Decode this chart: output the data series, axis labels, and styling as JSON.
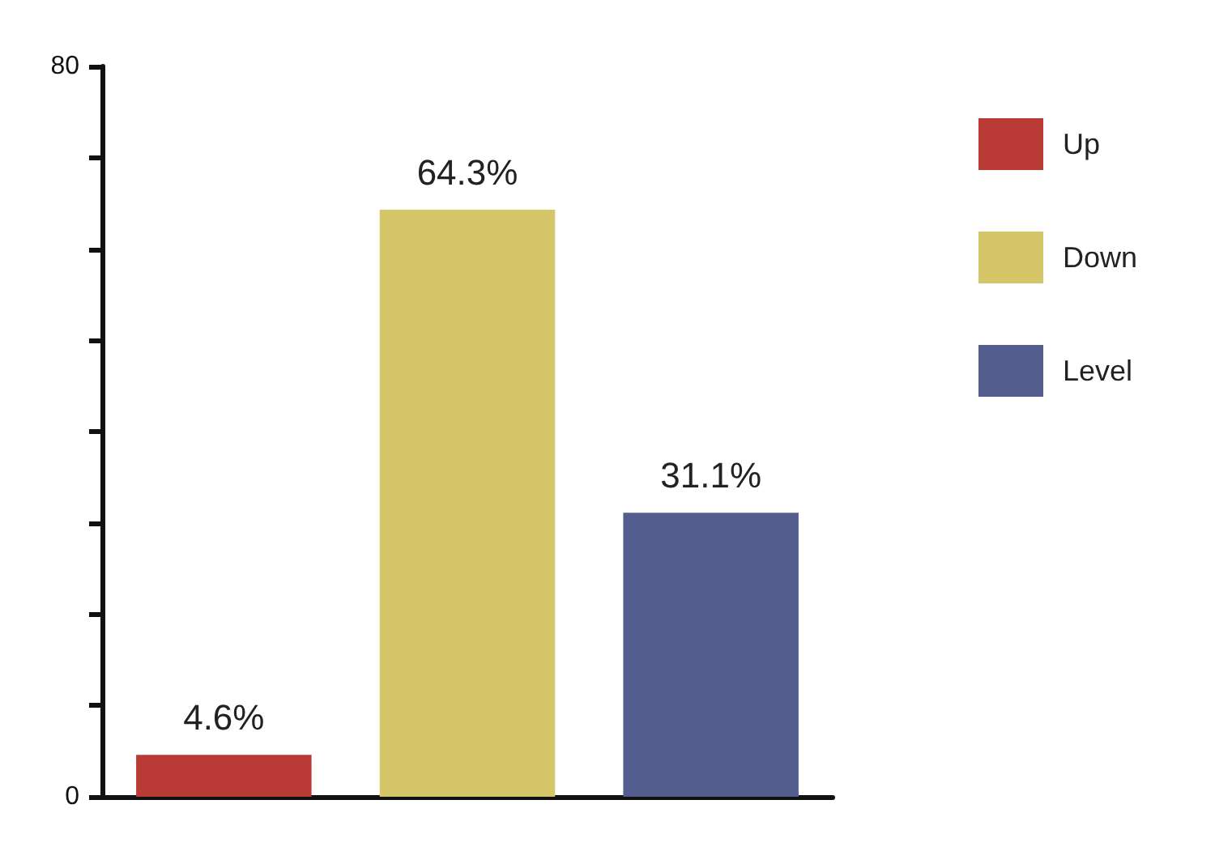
{
  "chart_data": {
    "type": "bar",
    "categories": [
      null,
      null,
      null
    ],
    "series": [
      {
        "name": "Up",
        "color": "#b93a37",
        "values": [
          4.6,
          null,
          null
        ],
        "value_labels": [
          "4.6%",
          null,
          null
        ]
      },
      {
        "name": "Down",
        "color": "#d6c66a",
        "values": [
          null,
          64.3,
          null
        ],
        "value_labels": [
          null,
          "64.3%",
          null
        ]
      },
      {
        "name": "Level",
        "color": "#535e8f",
        "values": [
          null,
          null,
          31.1
        ],
        "value_labels": [
          null,
          null,
          "31.1%"
        ]
      }
    ],
    "ylim": [
      0,
      80
    ],
    "yticks": [
      0,
      {
        "value": 10,
        "label": null
      },
      {
        "value": 20,
        "label": null
      },
      {
        "value": 30,
        "label": null
      },
      {
        "value": 40,
        "label": null
      },
      {
        "value": 50,
        "label": null
      },
      {
        "value": 60,
        "label": null
      },
      {
        "value": 70,
        "label": null
      },
      80
    ],
    "tick_labels": "y",
    "grid": false,
    "legend": "right"
  }
}
